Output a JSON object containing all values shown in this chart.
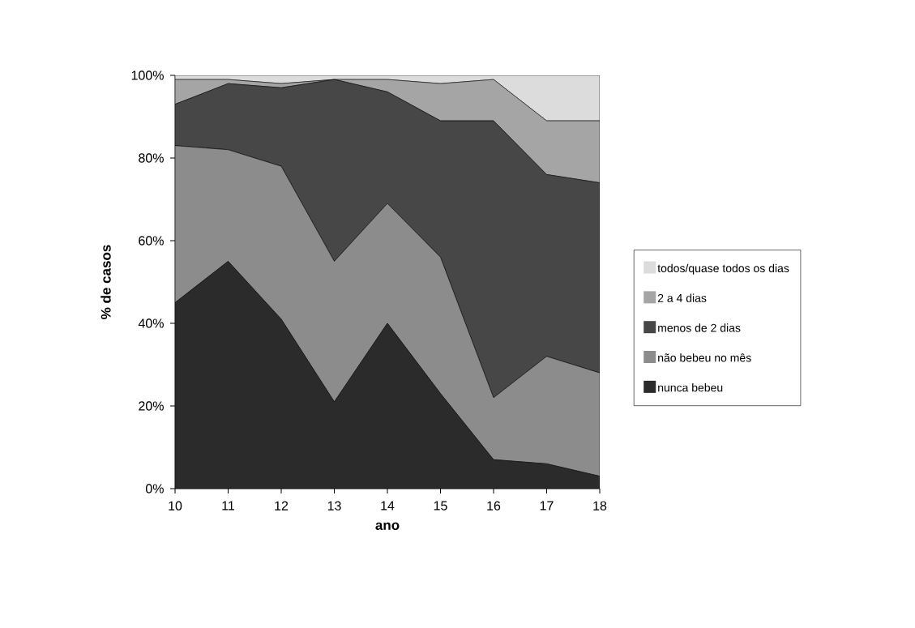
{
  "chart_data": {
    "type": "area",
    "stacked": true,
    "xlabel": "ano",
    "ylabel": "% de casos",
    "x": [
      10,
      11,
      12,
      13,
      14,
      15,
      16,
      17,
      18
    ],
    "series": [
      {
        "name": "nunca bebeu",
        "color": "#2b2b2b",
        "values": [
          45,
          55,
          41,
          21,
          40,
          23,
          7,
          6,
          3
        ]
      },
      {
        "name": "não bebeu no mês",
        "color": "#8c8c8c",
        "values": [
          38,
          27,
          37,
          34,
          29,
          33,
          15,
          26,
          25
        ]
      },
      {
        "name": "menos de 2 dias",
        "color": "#474747",
        "values": [
          10,
          16,
          19,
          44,
          27,
          33,
          67,
          44,
          46
        ]
      },
      {
        "name": "2 a 4 dias",
        "color": "#a5a5a5",
        "values": [
          6,
          1,
          1,
          0,
          3,
          9,
          10,
          13,
          15
        ]
      },
      {
        "name": "todos/quase todos os dias",
        "color": "#dcdcdc",
        "values": [
          1,
          1,
          2,
          1,
          1,
          2,
          1,
          11,
          11
        ]
      }
    ],
    "xlim": [
      10,
      18
    ],
    "ylim": [
      0,
      100
    ],
    "xticks": [
      10,
      11,
      12,
      13,
      14,
      15,
      16,
      17,
      18
    ],
    "yticks": [
      {
        "value": 0,
        "label": "0%"
      },
      {
        "value": 20,
        "label": "20%"
      },
      {
        "value": 40,
        "label": "40%"
      },
      {
        "value": 60,
        "label": "60%"
      },
      {
        "value": 80,
        "label": "80%"
      },
      {
        "value": 100,
        "label": "100%"
      }
    ],
    "grid": false,
    "legend": "right"
  }
}
